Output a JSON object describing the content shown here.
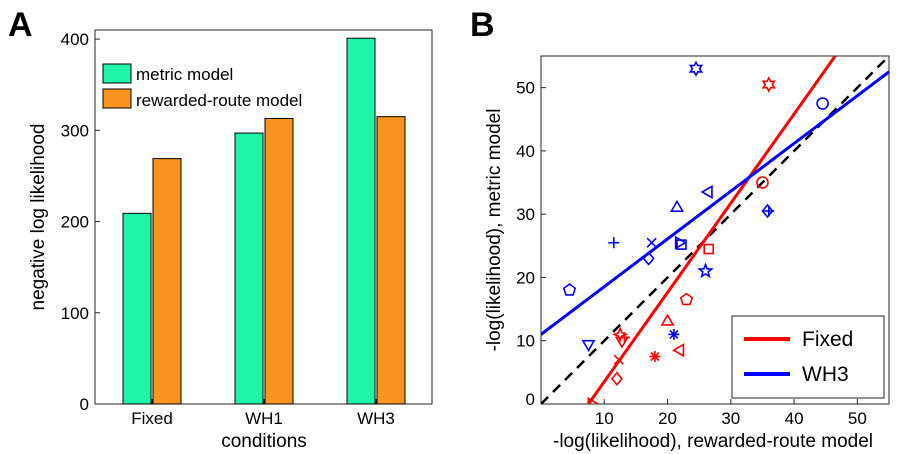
{
  "panels": {
    "a": "A",
    "b": "B"
  },
  "chart_data": [
    {
      "type": "bar",
      "categories": [
        "Fixed",
        "WH1",
        "WH3"
      ],
      "series": [
        {
          "name": "metric model",
          "values": [
            209,
            297,
            401
          ],
          "color": "#1ef5a8"
        },
        {
          "name": "rewarded-route model",
          "values": [
            269,
            313,
            315
          ],
          "color": "#fa9320"
        }
      ],
      "xlabel": "conditions",
      "ylabel": "negative log likelihood",
      "ylim": [
        0,
        410
      ],
      "yticks": [
        0,
        100,
        200,
        300,
        400
      ],
      "legend": "top-left",
      "grid": false
    },
    {
      "type": "scatter",
      "xlabel": "-log(likelihood), rewarded-route model",
      "ylabel": "-log(likelihood), metric model",
      "xlim": [
        0,
        55
      ],
      "ylim": [
        0,
        55
      ],
      "xticks": [
        0,
        10,
        20,
        30,
        40,
        50
      ],
      "yticks": [
        0,
        10,
        20,
        30,
        40,
        50
      ],
      "legend": "bottom-right",
      "grid": false,
      "identity_line": {
        "style": "dashed",
        "color": "#000000"
      },
      "series": [
        {
          "name": "Fixed",
          "color": "#ff0000",
          "fit": {
            "x0": 7.5,
            "y0": 0,
            "x1": 46.5,
            "y1": 55
          },
          "points": [
            {
              "x": 8,
              "y": 0,
              "marker": "triangle-right"
            },
            {
              "x": 12,
              "y": 4,
              "marker": "diamond"
            },
            {
              "x": 12.3,
              "y": 7,
              "marker": "x"
            },
            {
              "x": 12.5,
              "y": 11,
              "marker": "star4"
            },
            {
              "x": 12.8,
              "y": 10,
              "marker": "triangle-down"
            },
            {
              "x": 13.2,
              "y": 10.5,
              "marker": "plus"
            },
            {
              "x": 18,
              "y": 7.5,
              "marker": "asterisk"
            },
            {
              "x": 20,
              "y": 13,
              "marker": "triangle-up"
            },
            {
              "x": 22,
              "y": 8.5,
              "marker": "triangle-left"
            },
            {
              "x": 23,
              "y": 16.5,
              "marker": "pentagon"
            },
            {
              "x": 26.5,
              "y": 24.5,
              "marker": "square"
            },
            {
              "x": 35,
              "y": 35,
              "marker": "circle"
            },
            {
              "x": 36,
              "y": 50.5,
              "marker": "hexagram"
            }
          ]
        },
        {
          "name": "WH3",
          "color": "#0000ff",
          "fit": {
            "x0": 0,
            "y0": 11,
            "x1": 55,
            "y1": 52.5
          },
          "points": [
            {
              "x": 4.5,
              "y": 18,
              "marker": "pentagon"
            },
            {
              "x": 7.5,
              "y": 9.5,
              "marker": "triangle-down"
            },
            {
              "x": 11.5,
              "y": 25.5,
              "marker": "plus"
            },
            {
              "x": 17,
              "y": 23,
              "marker": "diamond"
            },
            {
              "x": 17.5,
              "y": 25.5,
              "marker": "x"
            },
            {
              "x": 21,
              "y": 11,
              "marker": "asterisk"
            },
            {
              "x": 21.5,
              "y": 31,
              "marker": "triangle-up"
            },
            {
              "x": 21.8,
              "y": 25.5,
              "marker": "triangle-right"
            },
            {
              "x": 22.2,
              "y": 25.2,
              "marker": "square"
            },
            {
              "x": 24.5,
              "y": 53,
              "marker": "hexagram"
            },
            {
              "x": 26,
              "y": 21,
              "marker": "star5"
            },
            {
              "x": 26.5,
              "y": 33.5,
              "marker": "triangle-left"
            },
            {
              "x": 35.8,
              "y": 30.5,
              "marker": "diamond"
            },
            {
              "x": 36,
              "y": 30.5,
              "marker": "plus"
            },
            {
              "x": 44.5,
              "y": 47.5,
              "marker": "circle"
            }
          ]
        }
      ]
    }
  ]
}
